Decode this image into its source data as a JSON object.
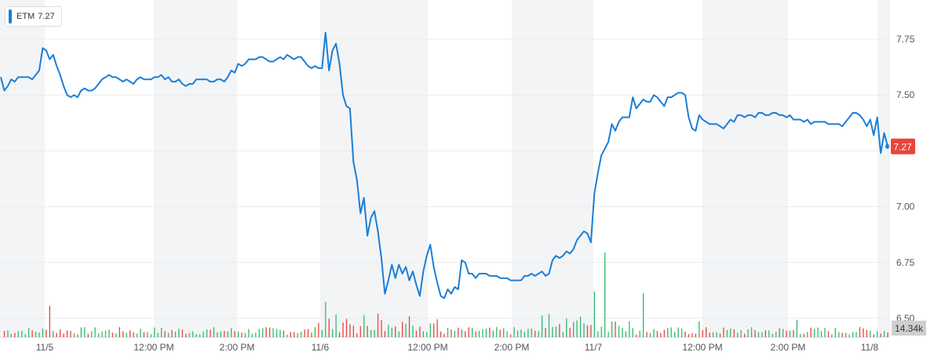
{
  "legend": {
    "ticker": "ETM",
    "value": "7.27",
    "color": "#1a7fd6"
  },
  "colors": {
    "line": "#1a7fd6",
    "band": "#f3f4f6",
    "grid": "#e8ebee",
    "vol_up": "#2dbb6a",
    "vol_down": "#e8453c",
    "last_price_bg": "#e8453c",
    "volume_bg": "#cfcfcf"
  },
  "chart_data": {
    "type": "line",
    "title": "",
    "xlabel": "",
    "ylabel": "",
    "ylim": [
      6.45,
      7.95
    ],
    "y_ticks": [
      "7.75",
      "7.50",
      "7.25",
      "7.00",
      "6.75",
      "6.50"
    ],
    "x_ticks": [
      "11/5",
      "12:00 PM",
      "2:00 PM",
      "11/6",
      "12:00 PM",
      "2:00 PM",
      "11/7",
      "12:00 PM",
      "2:00 PM",
      "11/8"
    ],
    "last_price": "7.27",
    "volume_label": "14.34k",
    "grid": true,
    "series": [
      {
        "values": [
          7.58,
          7.52,
          7.54,
          7.57,
          7.56,
          7.58,
          7.58,
          7.58,
          7.58,
          7.57,
          7.59,
          7.61,
          7.71,
          7.7,
          7.66,
          7.68,
          7.63,
          7.59,
          7.54,
          7.5,
          7.49,
          7.5,
          7.49,
          7.52,
          7.53,
          7.52,
          7.52,
          7.53,
          7.55,
          7.57,
          7.58,
          7.59,
          7.58,
          7.58,
          7.57,
          7.56,
          7.57,
          7.56,
          7.55,
          7.57,
          7.58,
          7.57,
          7.57,
          7.57,
          7.58,
          7.58,
          7.59,
          7.57,
          7.58,
          7.56,
          7.56,
          7.57,
          7.55,
          7.54,
          7.55,
          7.55,
          7.57,
          7.57,
          7.57,
          7.57,
          7.56,
          7.56,
          7.57,
          7.57,
          7.56,
          7.58,
          7.61,
          7.6,
          7.64,
          7.63,
          7.64,
          7.66,
          7.66,
          7.66,
          7.67,
          7.67,
          7.66,
          7.65,
          7.65,
          7.66,
          7.67,
          7.66,
          7.68,
          7.67,
          7.66,
          7.67,
          7.67,
          7.65,
          7.63,
          7.62,
          7.63,
          7.62,
          7.62,
          7.78,
          7.61,
          7.7,
          7.73,
          7.64,
          7.5,
          7.45,
          7.44,
          7.2,
          7.12,
          6.97,
          7.04,
          6.87,
          6.95,
          6.98,
          6.89,
          6.77,
          6.61,
          6.67,
          6.74,
          6.68,
          6.74,
          6.7,
          6.73,
          6.67,
          6.71,
          6.65,
          6.6,
          6.71,
          6.78,
          6.83,
          6.73,
          6.66,
          6.6,
          6.59,
          6.63,
          6.61,
          6.64,
          6.63,
          6.76,
          6.75,
          6.7,
          6.7,
          6.68,
          6.7,
          6.7,
          6.7,
          6.69,
          6.69,
          6.69,
          6.68,
          6.68,
          6.68,
          6.67,
          6.67,
          6.67,
          6.67,
          6.69,
          6.69,
          6.7,
          6.69,
          6.7,
          6.71,
          6.69,
          6.7,
          6.76,
          6.78,
          6.77,
          6.78,
          6.8,
          6.79,
          6.81,
          6.85,
          6.87,
          6.89,
          6.88,
          6.84,
          7.06,
          7.15,
          7.23,
          7.26,
          7.29,
          7.37,
          7.34,
          7.38,
          7.4,
          7.4,
          7.4,
          7.49,
          7.44,
          7.46,
          7.48,
          7.47,
          7.47,
          7.5,
          7.49,
          7.47,
          7.45,
          7.49,
          7.49,
          7.5,
          7.51,
          7.51,
          7.5,
          7.4,
          7.35,
          7.34,
          7.41,
          7.39,
          7.38,
          7.37,
          7.37,
          7.37,
          7.36,
          7.35,
          7.37,
          7.39,
          7.38,
          7.41,
          7.41,
          7.4,
          7.41,
          7.41,
          7.4,
          7.42,
          7.42,
          7.41,
          7.41,
          7.42,
          7.42,
          7.41,
          7.41,
          7.4,
          7.41,
          7.39,
          7.39,
          7.39,
          7.38,
          7.39,
          7.37,
          7.38,
          7.38,
          7.38,
          7.38,
          7.37,
          7.37,
          7.37,
          7.37,
          7.36,
          7.38,
          7.4,
          7.42,
          7.42,
          7.41,
          7.39,
          7.36,
          7.39,
          7.32,
          7.4,
          7.24,
          7.33,
          7.27
        ]
      }
    ]
  }
}
